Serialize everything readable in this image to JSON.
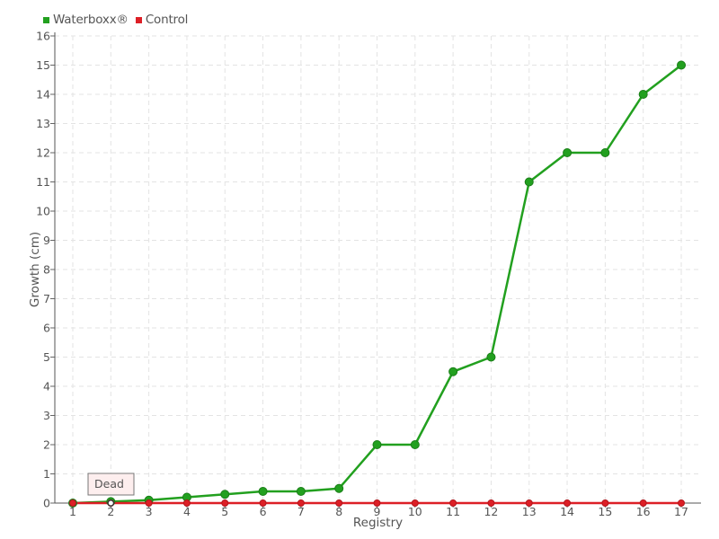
{
  "chart_data": {
    "type": "line",
    "x": [
      1,
      2,
      3,
      4,
      5,
      6,
      7,
      8,
      9,
      10,
      11,
      12,
      13,
      14,
      15,
      16,
      17
    ],
    "series": [
      {
        "name": "Waterboxx®",
        "color": "#22a01f",
        "values": [
          0,
          0.05,
          0.1,
          0.2,
          0.3,
          0.4,
          0.4,
          0.5,
          2,
          2,
          4.5,
          5,
          11,
          12,
          12,
          14,
          15
        ]
      },
      {
        "name": "Control",
        "color": "#dd1f26",
        "values": [
          0,
          0,
          0,
          0,
          0,
          0,
          0,
          0,
          0,
          0,
          0,
          0,
          0,
          0,
          0,
          0,
          0
        ]
      }
    ],
    "xlabel": "Registry",
    "ylabel": "Growth (cm)",
    "ylim": [
      0,
      16
    ],
    "yticks": [
      0,
      1,
      2,
      3,
      4,
      5,
      6,
      7,
      8,
      9,
      10,
      11,
      12,
      13,
      14,
      15,
      16
    ],
    "grid": true,
    "legend": "top-left",
    "annotation": {
      "text": "Dead",
      "x": 2,
      "series": "Control"
    }
  }
}
